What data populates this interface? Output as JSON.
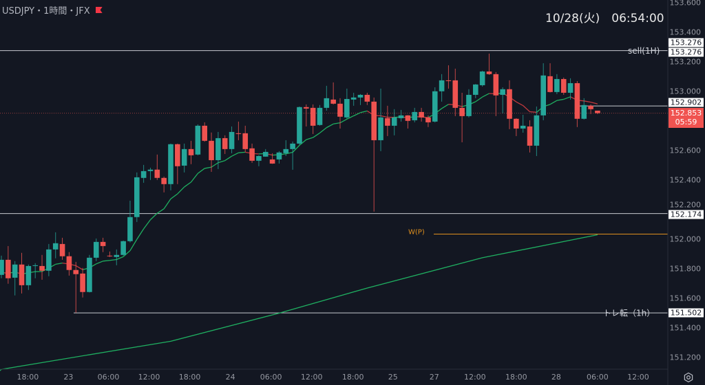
{
  "header": {
    "symbol": "USDJPY・1時間・JFX",
    "flag_icon": "flag-icon",
    "datetime": "10/28(火)　06:54:00"
  },
  "colors": {
    "up": "#26a69a",
    "down": "#ef5350",
    "ma_up": "#1fb061",
    "ma_down": "#c0393e",
    "wp": "#e0901e",
    "bg": "#131722"
  },
  "lines": {
    "sell": {
      "label": "sell(1H)",
      "price": 153.276,
      "tag1": "153.276",
      "tag2": "153.276"
    },
    "level": {
      "price": 152.902,
      "tag": "152.902"
    },
    "current": {
      "price": 152.853,
      "tag": "152.853",
      "countdown": "05:59"
    },
    "support": {
      "price": 152.174,
      "tag": "152.174"
    },
    "wp": {
      "label": "W(P)",
      "price": 152.035
    },
    "trend": {
      "label": "トレ転（1h）",
      "price": 151.502,
      "tag": "151.502"
    }
  },
  "footer": {
    "settings_icon": "settings-icon"
  },
  "chart_data": {
    "type": "candlestick",
    "title": "USDJPY 1H",
    "ylim": [
      151.11,
      153.62
    ],
    "y_ticks": [
      "153.600",
      "153.400",
      "153.200",
      "153.000",
      "152.600",
      "152.400",
      "152.200",
      "152.000",
      "151.800",
      "151.600",
      "151.400",
      "151.200"
    ],
    "x_ticks": [
      {
        "label": "18:00",
        "bar": 3.9
      },
      {
        "label": "23",
        "bar": 9.9
      },
      {
        "label": "06:00",
        "bar": 15.8
      },
      {
        "label": "12:00",
        "bar": 21.8
      },
      {
        "label": "18:00",
        "bar": 27.8
      },
      {
        "label": "24",
        "bar": 33.8
      },
      {
        "label": "06:00",
        "bar": 39.8
      },
      {
        "label": "12:00",
        "bar": 45.8
      },
      {
        "label": "18:00",
        "bar": 51.9
      },
      {
        "label": "25",
        "bar": 57.8
      },
      {
        "label": "27",
        "bar": 63.9
      },
      {
        "label": "12:00",
        "bar": 69.9
      },
      {
        "label": "18:00",
        "bar": 76.0
      },
      {
        "label": "28",
        "bar": 81.9
      },
      {
        "label": "06:00",
        "bar": 88.0
      },
      {
        "label": "12:00",
        "bar": 94.0
      }
    ],
    "ohlc": [
      [
        151.759,
        151.889,
        151.736,
        151.861
      ],
      [
        151.861,
        151.954,
        151.699,
        151.736
      ],
      [
        151.74,
        151.852,
        151.62,
        151.829
      ],
      [
        151.829,
        151.908,
        151.633,
        151.689
      ],
      [
        151.689,
        151.829,
        151.657,
        151.819
      ],
      [
        151.819,
        151.838,
        151.736,
        151.824
      ],
      [
        151.819,
        151.894,
        151.726,
        151.787
      ],
      [
        151.787,
        151.968,
        151.75,
        151.931
      ],
      [
        151.931,
        152.047,
        151.871,
        151.973
      ],
      [
        151.968,
        152.01,
        151.861,
        151.885
      ],
      [
        151.885,
        151.913,
        151.754,
        151.792
      ],
      [
        151.792,
        151.847,
        151.503,
        151.764
      ],
      [
        151.768,
        151.806,
        151.606,
        151.643
      ],
      [
        151.643,
        151.894,
        151.64,
        151.875
      ],
      [
        151.875,
        152.005,
        151.852,
        151.982
      ],
      [
        151.982,
        152.01,
        151.913,
        151.954
      ],
      [
        151.889,
        151.917,
        151.88,
        151.885
      ],
      [
        151.88,
        151.931,
        151.824,
        151.894
      ],
      [
        151.894,
        151.991,
        151.889,
        151.987
      ],
      [
        151.987,
        152.261,
        151.978,
        152.15
      ],
      [
        152.15,
        152.452,
        152.117,
        152.419
      ],
      [
        152.415,
        152.503,
        152.382,
        152.461
      ],
      [
        152.461,
        152.484,
        152.401,
        152.471
      ],
      [
        152.471,
        152.573,
        152.401,
        152.415
      ],
      [
        152.415,
        152.424,
        152.317,
        152.373
      ],
      [
        152.373,
        152.647,
        152.331,
        152.643
      ],
      [
        152.643,
        152.647,
        152.373,
        152.494
      ],
      [
        152.498,
        152.647,
        152.452,
        152.61
      ],
      [
        152.61,
        152.666,
        152.508,
        152.568
      ],
      [
        152.573,
        152.777,
        152.568,
        152.768
      ],
      [
        152.768,
        152.791,
        152.66,
        152.666
      ],
      [
        152.666,
        152.722,
        152.456,
        152.535
      ],
      [
        152.535,
        152.726,
        152.475,
        152.684
      ],
      [
        152.684,
        152.703,
        152.577,
        152.61
      ],
      [
        152.61,
        152.763,
        152.582,
        152.726
      ],
      [
        152.717,
        152.796,
        152.67,
        152.712
      ],
      [
        152.717,
        152.768,
        152.591,
        152.61
      ],
      [
        152.615,
        152.647,
        152.517,
        152.531
      ],
      [
        152.531,
        152.568,
        152.494,
        152.563
      ],
      [
        152.559,
        152.61,
        152.559,
        152.591
      ],
      [
        152.54,
        152.582,
        152.51,
        152.512
      ],
      [
        152.54,
        152.596,
        152.512,
        152.587
      ],
      [
        152.582,
        152.67,
        152.563,
        152.61
      ],
      [
        152.61,
        152.661,
        152.47,
        152.647
      ],
      [
        152.647,
        152.898,
        152.638,
        152.894
      ],
      [
        152.894,
        152.912,
        152.763,
        152.884
      ],
      [
        152.889,
        152.912,
        152.712,
        152.768
      ],
      [
        152.773,
        152.908,
        152.768,
        152.889
      ],
      [
        152.889,
        153.038,
        152.87,
        152.954
      ],
      [
        152.945,
        153.061,
        152.912,
        152.917
      ],
      [
        152.917,
        152.954,
        152.749,
        152.829
      ],
      [
        152.824,
        153.019,
        152.815,
        152.949
      ],
      [
        152.945,
        152.991,
        152.903,
        152.959
      ],
      [
        152.959,
        152.982,
        152.908,
        152.977
      ],
      [
        152.977,
        152.991,
        152.908,
        152.931
      ],
      [
        152.931,
        152.959,
        152.187,
        152.67
      ],
      [
        152.67,
        153.019,
        152.596,
        152.824
      ],
      [
        152.819,
        152.903,
        152.698,
        152.768
      ],
      [
        152.768,
        152.88,
        152.703,
        152.824
      ],
      [
        152.819,
        152.875,
        152.796,
        152.838
      ],
      [
        152.838,
        152.84,
        152.749,
        152.801
      ],
      [
        152.805,
        152.889,
        152.791,
        152.861
      ],
      [
        152.861,
        152.889,
        152.796,
        152.824
      ],
      [
        152.824,
        152.838,
        152.759,
        152.791
      ],
      [
        152.796,
        153.028,
        152.79,
        153.001
      ],
      [
        153.001,
        153.117,
        152.931,
        153.075
      ],
      [
        153.075,
        153.177,
        153.019,
        153.07
      ],
      [
        153.075,
        153.154,
        152.833,
        152.889
      ],
      [
        152.889,
        152.991,
        152.656,
        152.833
      ],
      [
        152.833,
        153.015,
        152.824,
        152.977
      ],
      [
        152.977,
        153.05,
        152.954,
        153.047
      ],
      [
        153.042,
        153.14,
        153.033,
        153.135
      ],
      [
        153.135,
        153.256,
        153.112,
        153.117
      ],
      [
        153.117,
        153.131,
        152.833,
        152.973
      ],
      [
        152.977,
        153.028,
        152.852,
        153.015
      ],
      [
        153.015,
        153.075,
        152.745,
        152.815
      ],
      [
        152.815,
        152.819,
        152.698,
        152.749
      ],
      [
        152.749,
        152.842,
        152.721,
        152.768
      ],
      [
        152.763,
        152.805,
        152.587,
        152.633
      ],
      [
        152.633,
        152.898,
        152.563,
        152.838
      ],
      [
        152.838,
        153.191,
        152.805,
        153.108
      ],
      [
        153.103,
        153.191,
        152.993,
        152.996
      ],
      [
        152.996,
        153.117,
        152.982,
        153.084
      ],
      [
        153.084,
        153.094,
        152.977,
        152.991
      ],
      [
        152.991,
        153.089,
        152.945,
        153.056
      ],
      [
        153.056,
        153.07,
        152.759,
        152.815
      ],
      [
        152.815,
        152.954,
        152.81,
        152.908
      ],
      [
        152.903,
        152.912,
        152.847,
        152.88
      ],
      [
        152.87,
        152.87,
        152.847,
        152.853
      ]
    ],
    "ma_short_period": 12,
    "ma_long": [
      [
        0,
        151.12
      ],
      [
        25,
        151.31
      ],
      [
        41,
        151.5
      ],
      [
        54,
        151.67
      ],
      [
        71,
        151.875
      ],
      [
        88,
        152.03
      ]
    ]
  }
}
